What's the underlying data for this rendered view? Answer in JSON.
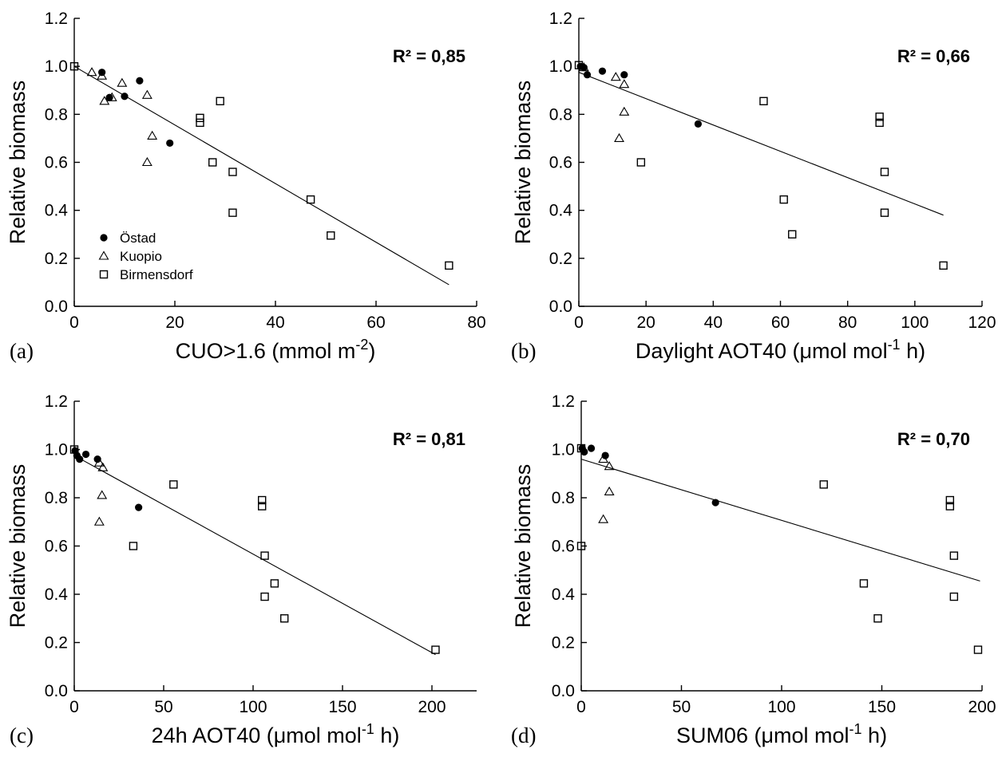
{
  "legend": {
    "items": [
      {
        "label": "Östad",
        "marker": "dot-icon"
      },
      {
        "label": "Kuopio",
        "marker": "triangle-icon"
      },
      {
        "label": "Birmensdorf",
        "marker": "square-icon"
      }
    ]
  },
  "chart_data": [
    {
      "type": "scatter",
      "panel_letter": "(a)",
      "xlabel_main": "CUO>1.6 (mmol m",
      "xlabel_sup": "-2",
      "xlabel_tail": ")",
      "ylabel": "Relative biomass",
      "xlim": [
        0,
        80
      ],
      "ylim": [
        0,
        1.2
      ],
      "xticks": [
        0,
        20,
        40,
        60,
        80
      ],
      "yticks": [
        0.0,
        0.2,
        0.4,
        0.6,
        0.8,
        1.0,
        1.2
      ],
      "r2": "R² = 0,85",
      "fit": [
        [
          0,
          1.0
        ],
        [
          74.5,
          0.09
        ]
      ],
      "show_legend": true,
      "series": [
        {
          "name": "Östad",
          "marker": "dot",
          "points": [
            [
              5.5,
              0.975
            ],
            [
              7,
              0.87
            ],
            [
              10,
              0.875
            ],
            [
              13,
              0.94
            ],
            [
              19,
              0.68
            ]
          ]
        },
        {
          "name": "Kuopio",
          "marker": "triangle",
          "points": [
            [
              3.5,
              0.975
            ],
            [
              5.5,
              0.96
            ],
            [
              6,
              0.855
            ],
            [
              7.5,
              0.87
            ],
            [
              9.5,
              0.93
            ],
            [
              14.5,
              0.88
            ],
            [
              14.5,
              0.6
            ],
            [
              15.5,
              0.71
            ]
          ]
        },
        {
          "name": "Birmensdorf",
          "marker": "square",
          "points": [
            [
              0,
              1.0
            ],
            [
              25,
              0.785
            ],
            [
              25,
              0.765
            ],
            [
              27.5,
              0.6
            ],
            [
              29,
              0.855
            ],
            [
              31.5,
              0.56
            ],
            [
              31.5,
              0.39
            ],
            [
              47,
              0.445
            ],
            [
              51,
              0.295
            ],
            [
              74.5,
              0.17
            ]
          ]
        }
      ]
    },
    {
      "type": "scatter",
      "panel_letter": "(b)",
      "xlabel_main": "Daylight AOT40 (μmol mol",
      "xlabel_sup": "-1",
      "xlabel_tail": " h)",
      "ylabel": "Relative biomass",
      "xlim": [
        0,
        120
      ],
      "ylim": [
        0,
        1.2
      ],
      "xticks": [
        0,
        20,
        40,
        60,
        80,
        100,
        120
      ],
      "yticks": [
        0.0,
        0.2,
        0.4,
        0.6,
        0.8,
        1.0,
        1.2
      ],
      "r2": "R² = 0,66",
      "fit": [
        [
          0,
          0.975
        ],
        [
          108.5,
          0.38
        ]
      ],
      "show_legend": false,
      "series": [
        {
          "name": "Östad",
          "marker": "dot",
          "points": [
            [
              0.5,
              1.0
            ],
            [
              1.5,
              0.995
            ],
            [
              2.5,
              0.965
            ],
            [
              7,
              0.98
            ],
            [
              13.5,
              0.965
            ],
            [
              35.5,
              0.76
            ]
          ]
        },
        {
          "name": "Kuopio",
          "marker": "triangle",
          "points": [
            [
              1.5,
              0.995
            ],
            [
              11,
              0.955
            ],
            [
              13.5,
              0.925
            ],
            [
              12,
              0.7
            ],
            [
              13.5,
              0.81
            ]
          ]
        },
        {
          "name": "Birmensdorf",
          "marker": "square",
          "points": [
            [
              0,
              1.005
            ],
            [
              18.5,
              0.6
            ],
            [
              55,
              0.855
            ],
            [
              61,
              0.445
            ],
            [
              63.5,
              0.3
            ],
            [
              89.5,
              0.79
            ],
            [
              89.5,
              0.765
            ],
            [
              91,
              0.56
            ],
            [
              91,
              0.39
            ],
            [
              108.5,
              0.17
            ]
          ]
        }
      ]
    },
    {
      "type": "scatter",
      "panel_letter": "(c)",
      "xlabel_main": "24h AOT40 (μmol mol",
      "xlabel_sup": "-1",
      "xlabel_tail": " h)",
      "ylabel": "Relative biomass",
      "xlim": [
        0,
        225
      ],
      "ylim": [
        0,
        1.2
      ],
      "xticks": [
        0,
        50,
        100,
        150,
        200
      ],
      "yticks": [
        0.0,
        0.2,
        0.4,
        0.6,
        0.8,
        1.0,
        1.2
      ],
      "r2": "R² = 0,81",
      "fit": [
        [
          0,
          0.975
        ],
        [
          202,
          0.15
        ]
      ],
      "show_legend": false,
      "series": [
        {
          "name": "Östad",
          "marker": "dot",
          "points": [
            [
              0.5,
              0.995
            ],
            [
              1.5,
              0.975
            ],
            [
              3,
              0.96
            ],
            [
              6.5,
              0.98
            ],
            [
              13,
              0.96
            ],
            [
              36,
              0.76
            ]
          ]
        },
        {
          "name": "Kuopio",
          "marker": "triangle",
          "points": [
            [
              14,
              0.945
            ],
            [
              16,
              0.925
            ],
            [
              14,
              0.7
            ],
            [
              15.5,
              0.81
            ]
          ]
        },
        {
          "name": "Birmensdorf",
          "marker": "square",
          "points": [
            [
              0,
              1.0
            ],
            [
              33,
              0.6
            ],
            [
              55.5,
              0.855
            ],
            [
              105,
              0.79
            ],
            [
              105,
              0.765
            ],
            [
              106.5,
              0.56
            ],
            [
              106.5,
              0.39
            ],
            [
              112,
              0.445
            ],
            [
              117.5,
              0.3
            ],
            [
              202,
              0.17
            ]
          ]
        }
      ]
    },
    {
      "type": "scatter",
      "panel_letter": "(d)",
      "xlabel_main": "SUM06 (μmol mol",
      "xlabel_sup": "-1",
      "xlabel_tail": " h)",
      "ylabel": "Relative biomass",
      "xlim": [
        0,
        200
      ],
      "ylim": [
        0,
        1.2
      ],
      "xticks": [
        0,
        50,
        100,
        150,
        200
      ],
      "yticks": [
        0.0,
        0.2,
        0.4,
        0.6,
        0.8,
        1.0,
        1.2
      ],
      "r2": "R² = 0,70",
      "fit": [
        [
          0,
          0.96
        ],
        [
          199,
          0.455
        ]
      ],
      "show_legend": false,
      "series": [
        {
          "name": "Östad",
          "marker": "dot",
          "points": [
            [
              0.5,
              1.005
            ],
            [
              1.5,
              0.99
            ],
            [
              5,
              1.005
            ],
            [
              12,
              0.975
            ],
            [
              67,
              0.78
            ]
          ]
        },
        {
          "name": "Kuopio",
          "marker": "triangle",
          "points": [
            [
              11,
              0.96
            ],
            [
              14,
              0.93
            ],
            [
              11,
              0.71
            ],
            [
              14,
              0.825
            ]
          ]
        },
        {
          "name": "Birmensdorf",
          "marker": "square",
          "points": [
            [
              0,
              1.005
            ],
            [
              0,
              0.6
            ],
            [
              121,
              0.855
            ],
            [
              141,
              0.445
            ],
            [
              148,
              0.3
            ],
            [
              184,
              0.79
            ],
            [
              184,
              0.765
            ],
            [
              186,
              0.56
            ],
            [
              186,
              0.39
            ],
            [
              198,
              0.17
            ]
          ]
        }
      ]
    }
  ]
}
